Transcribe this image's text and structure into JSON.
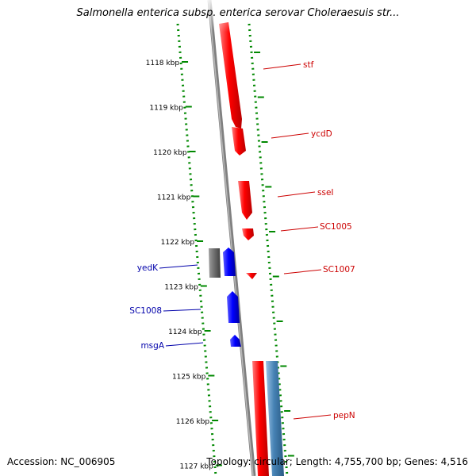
{
  "title": "Salmonella enterica subsp. enterica serovar Choleraesuis str...",
  "footer": {
    "accession": "Accession: NC_006905",
    "stats": "Topology: circular; Length: 4,755,700 bp; Genes: 4,516"
  },
  "ruler": {
    "unit": "kbp",
    "ticks": [
      "1118 kbp",
      "1119 kbp",
      "1120 kbp",
      "1121 kbp",
      "1122 kbp",
      "1123 kbp",
      "1124 kbp",
      "1125 kbp",
      "1126 kbp",
      "1127 kbp"
    ]
  },
  "colors": {
    "forward_gene": "#ff0000",
    "reverse_gene": "#0000ff",
    "forward_label": "#cc0000",
    "reverse_label": "#0000aa",
    "ruler": "#008800",
    "backbone": "#808080",
    "other_feature": "#4682b4"
  },
  "genes_forward": [
    {
      "label": "stf"
    },
    {
      "label": "ycdD"
    },
    {
      "label": "sseI"
    },
    {
      "label": "SC1005"
    },
    {
      "label": "SC1007"
    },
    {
      "label": "pepN"
    }
  ],
  "genes_reverse": [
    {
      "label": "yedK"
    },
    {
      "label": "SC1008"
    },
    {
      "label": "msgA"
    }
  ]
}
